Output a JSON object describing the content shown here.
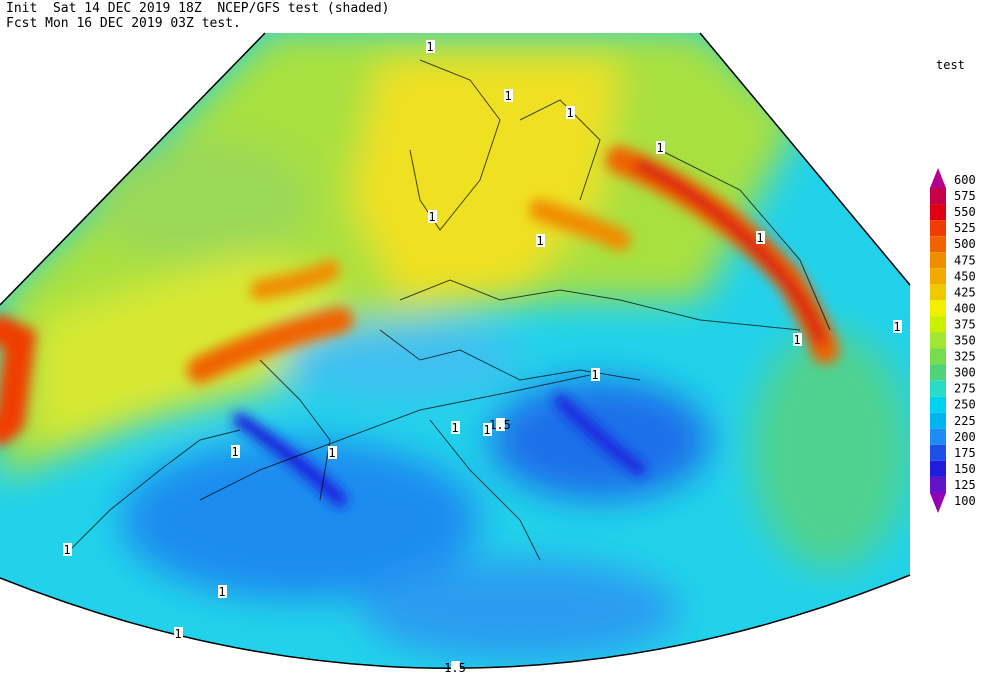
{
  "header": {
    "line1": "Init  Sat 14 DEC 2019 18Z  NCEP/GFS test (shaded)",
    "line2": "Fcst Mon 16 DEC 2019 03Z test."
  },
  "legend": {
    "title": "test",
    "levels": [
      {
        "value": 600,
        "color": "#b4008c"
      },
      {
        "value": 575,
        "color": "#c8004a"
      },
      {
        "value": 550,
        "color": "#e00014"
      },
      {
        "value": 525,
        "color": "#f03c00"
      },
      {
        "value": 500,
        "color": "#f06400"
      },
      {
        "value": 475,
        "color": "#f08c00"
      },
      {
        "value": 450,
        "color": "#f0aa00"
      },
      {
        "value": 425,
        "color": "#f0c800"
      },
      {
        "value": 400,
        "color": "#f0f000"
      },
      {
        "value": 375,
        "color": "#c8f000"
      },
      {
        "value": 350,
        "color": "#a0e632"
      },
      {
        "value": 325,
        "color": "#78dc50"
      },
      {
        "value": 300,
        "color": "#50d278"
      },
      {
        "value": 275,
        "color": "#28dcc8"
      },
      {
        "value": 250,
        "color": "#00d2f0"
      },
      {
        "value": 225,
        "color": "#00b4f0"
      },
      {
        "value": 200,
        "color": "#1e8cf0"
      },
      {
        "value": 175,
        "color": "#1e50e6"
      },
      {
        "value": 150,
        "color": "#1e1edc"
      },
      {
        "value": 125,
        "color": "#6414c8"
      },
      {
        "value": 100,
        "color": "#9600b4"
      }
    ]
  },
  "contour_labels": [
    "1",
    "1",
    "1",
    "1",
    "1",
    "1",
    "1",
    "1",
    "1",
    "1",
    "1",
    "1.5",
    "1",
    "1",
    "1",
    "1",
    "1",
    "1",
    "1.5"
  ]
}
